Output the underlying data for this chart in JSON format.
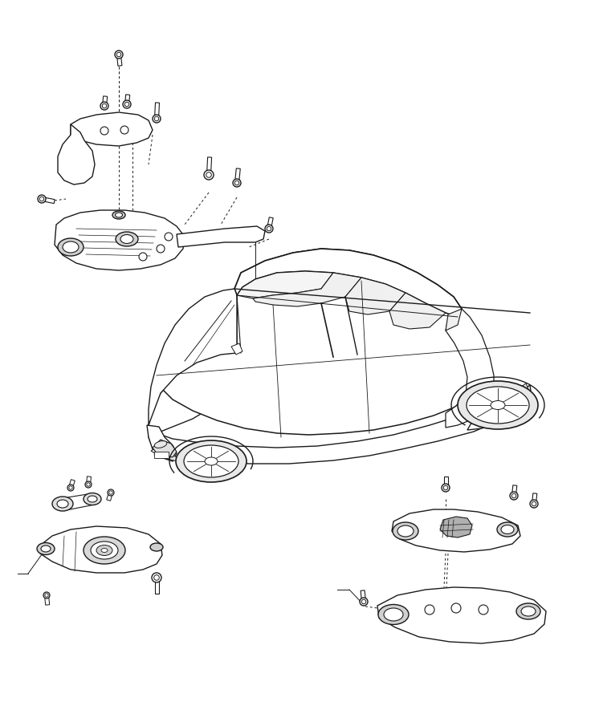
{
  "background_color": "#ffffff",
  "line_color": "#1a1a1a",
  "line_width": 1.0,
  "fig_width": 7.41,
  "fig_height": 9.0,
  "dpi": 100,
  "xlim": [
    0,
    741
  ],
  "ylim": [
    900,
    0
  ]
}
